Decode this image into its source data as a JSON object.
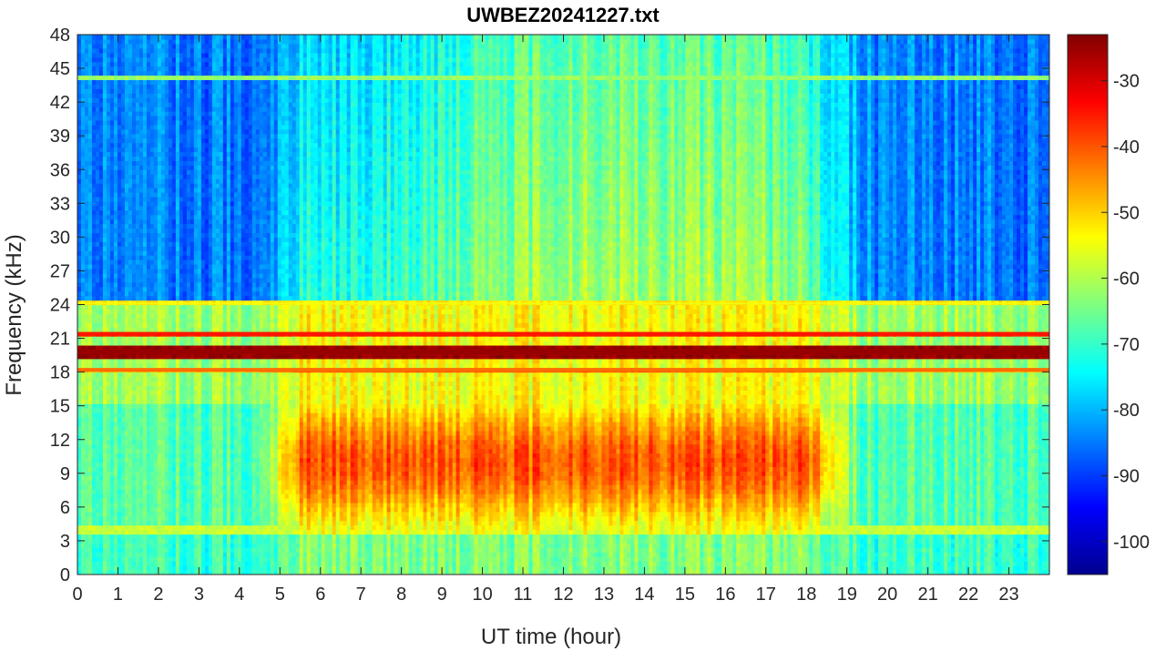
{
  "chart_data": {
    "type": "heatmap",
    "title": "UWBEZ20241227.txt",
    "xlabel": "UT time (hour)",
    "ylabel": "Frequency (kHz)",
    "xlim": [
      0,
      24
    ],
    "ylim": [
      0,
      48
    ],
    "x_ticks": [
      "0",
      "1",
      "2",
      "3",
      "4",
      "5",
      "6",
      "7",
      "8",
      "9",
      "10",
      "11",
      "12",
      "13",
      "14",
      "15",
      "16",
      "17",
      "18",
      "19",
      "20",
      "21",
      "22",
      "23"
    ],
    "y_ticks": [
      "0",
      "3",
      "6",
      "9",
      "12",
      "15",
      "18",
      "21",
      "24",
      "27",
      "30",
      "33",
      "36",
      "39",
      "42",
      "45",
      "48"
    ],
    "colorbar": {
      "colormap": "jet",
      "range": [
        -105,
        -23
      ],
      "ticks": [
        "-30",
        "-40",
        "-50",
        "-60",
        "-70",
        "-80",
        "-90",
        "-100"
      ]
    },
    "features": {
      "strong_lines_khz": [
        19.8,
        21.4,
        18.2,
        24.1
      ],
      "transmitter_line_level_db": -25,
      "background_high_freq_night_db": -85,
      "background_high_freq_day_db": -65,
      "low_freq_daytime_level_db": -45,
      "daytime_hours": [
        5,
        18.5
      ]
    }
  }
}
